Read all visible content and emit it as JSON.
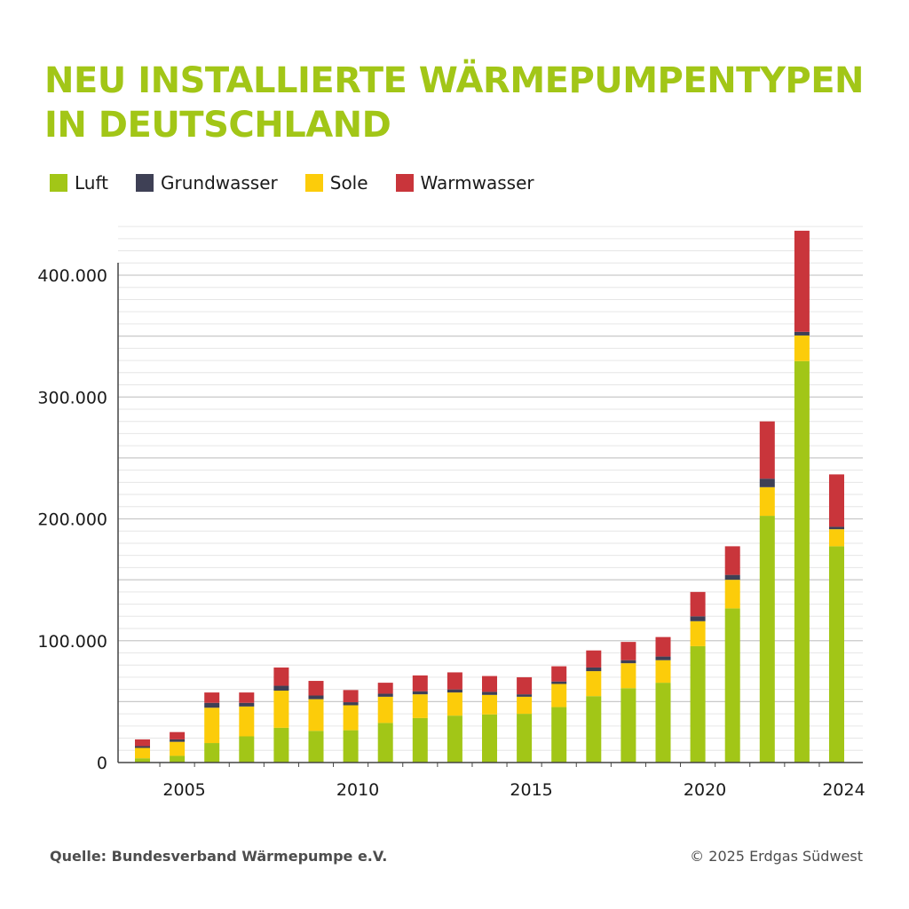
{
  "chart_data": {
    "type": "bar",
    "stacked": true,
    "title_lines": [
      "NEU INSTALLIERTE WÄRMEPUMPENTYPEN",
      "IN DEUTSCHLAND"
    ],
    "categories": [
      "2004",
      "2005",
      "2006",
      "2007",
      "2008",
      "2009",
      "2010",
      "2011",
      "2012",
      "2013",
      "2014",
      "2015",
      "2016",
      "2017",
      "2018",
      "2019",
      "2020",
      "2021",
      "2022",
      "2023",
      "2024"
    ],
    "x_tick_labels": [
      "2005",
      "2010",
      "2015",
      "2020",
      "2024"
    ],
    "y_tick_labels": [
      "0",
      "100.000",
      "200.000",
      "300.000",
      "400.000"
    ],
    "ylim": [
      0,
      440000
    ],
    "grid": true,
    "legend_position": "top-left",
    "series": [
      {
        "name": "Luft",
        "color": "#a2c617",
        "values": [
          3500,
          5500,
          16000,
          21500,
          28500,
          26000,
          26500,
          32500,
          36500,
          38500,
          39500,
          40000,
          45500,
          54500,
          61000,
          65500,
          95500,
          126500,
          202500,
          329500,
          177500
        ]
      },
      {
        "name": "Sole",
        "color": "#fccc0a",
        "values": [
          8500,
          11500,
          29000,
          24500,
          30500,
          26000,
          20500,
          21500,
          19500,
          19000,
          16000,
          14000,
          19000,
          20500,
          20500,
          18500,
          20500,
          23500,
          23500,
          21000,
          14000
        ]
      },
      {
        "name": "Grundwasser",
        "color": "#3e4055",
        "values": [
          1500,
          2000,
          4000,
          3000,
          4000,
          3000,
          2500,
          2500,
          2500,
          2500,
          2500,
          2000,
          2000,
          3000,
          2500,
          3000,
          4000,
          4000,
          7000,
          3000,
          2000
        ]
      },
      {
        "name": "Warmwasser",
        "color": "#c9353b",
        "values": [
          5500,
          6000,
          8500,
          8500,
          15000,
          12000,
          10000,
          9000,
          13000,
          14000,
          13000,
          14000,
          12500,
          14000,
          15000,
          16000,
          20000,
          23500,
          47000,
          83000,
          43000
        ]
      }
    ]
  },
  "legend": [
    {
      "label": "Luft",
      "color": "#a2c617"
    },
    {
      "label": "Grundwasser",
      "color": "#3e4055"
    },
    {
      "label": "Sole",
      "color": "#fccc0a"
    },
    {
      "label": "Warmwasser",
      "color": "#c9353b"
    }
  ],
  "footer": {
    "source": "Quelle: Bundesverband Wärmepumpe e.V.",
    "copyright": "© 2025 Erdgas Südwest"
  }
}
